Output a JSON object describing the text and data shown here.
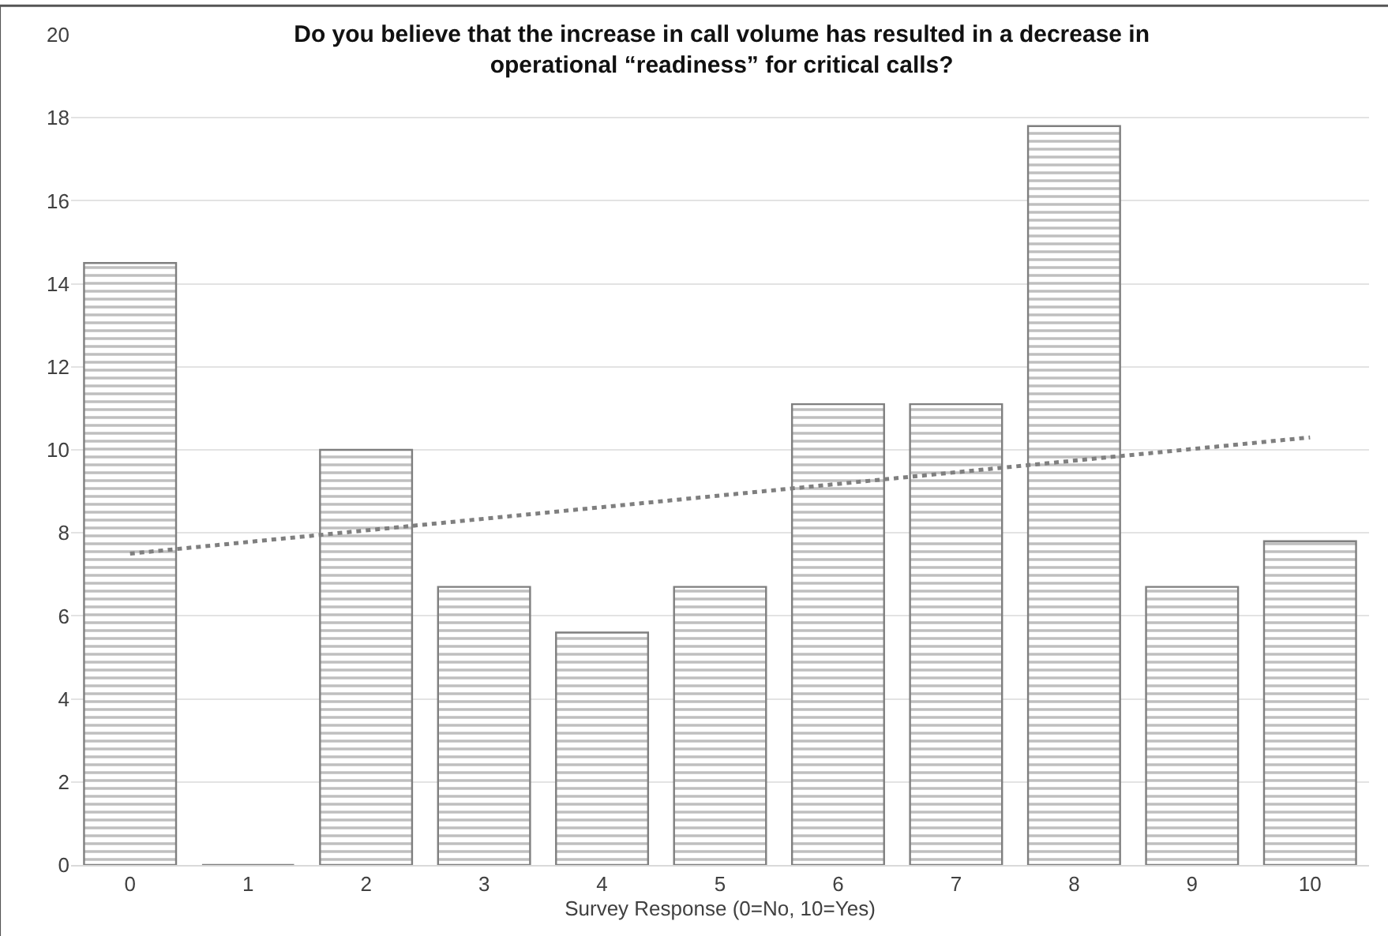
{
  "chart_data": {
    "type": "bar",
    "title": "Do you believe that the increase in call volume has resulted in a decrease in operational “readiness” for critical calls?",
    "xlabel": "Survey Response (0=No, 10=Yes)",
    "categories": [
      "0",
      "1",
      "2",
      "3",
      "4",
      "5",
      "6",
      "7",
      "8",
      "9",
      "10"
    ],
    "series": [
      {
        "color": "#7f7f7f",
        "values": [
          14.5,
          0,
          10,
          6.7,
          5.6,
          6.7,
          11.1,
          11.1,
          17.8,
          6.7,
          7.8
        ]
      },
      {
        "type": "line",
        "color": "#7f7f7f",
        "line_style": "dotted",
        "x": [
          "0",
          "10"
        ],
        "values": [
          7.5,
          10.3
        ]
      }
    ],
    "ylim": [
      0,
      20
    ],
    "yticks": [
      0,
      2,
      4,
      6,
      8,
      10,
      12,
      14,
      16,
      18,
      20
    ],
    "grid": "y"
  }
}
